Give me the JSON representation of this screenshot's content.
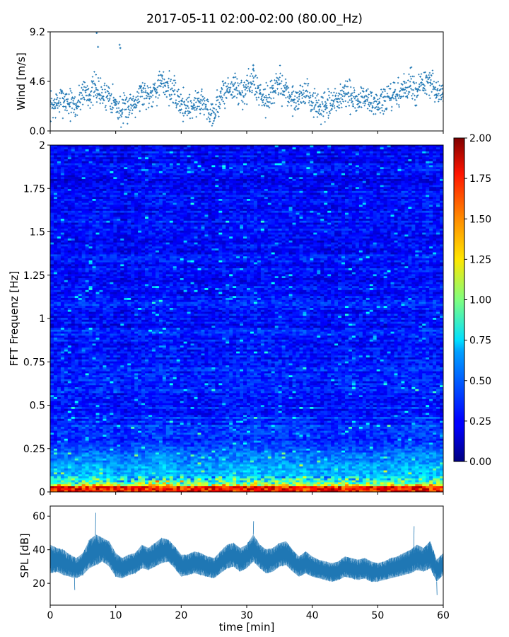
{
  "figure": {
    "title": "2017-05-11 02:00-02:00 (80.00_Hz)"
  },
  "chart_data": [
    {
      "type": "scatter",
      "panel": "wind",
      "ylabel": "Wind [m/s]",
      "xlabel": "",
      "xlim": [
        0,
        60
      ],
      "ylim": [
        0,
        9.2
      ],
      "yticks": [
        "0.0",
        "4.6",
        "9.2"
      ],
      "yticks_values": [
        0,
        4.6,
        9.2
      ],
      "marker_color": "#1f77b4",
      "series": [
        {
          "x": [
            0,
            1,
            2,
            3,
            4,
            5,
            6,
            7,
            8,
            9,
            10,
            11,
            12,
            13,
            14,
            15,
            16,
            17,
            18,
            19,
            20,
            21,
            22,
            23,
            24,
            25,
            26,
            27,
            28,
            29,
            30,
            31,
            32,
            33,
            34,
            35,
            36,
            37,
            38,
            39,
            40,
            41,
            42,
            43,
            44,
            45,
            46,
            47,
            48,
            49,
            50,
            51,
            52,
            53,
            54,
            55,
            56,
            57,
            58,
            59,
            60
          ],
          "values": [
            2.3,
            2.5,
            3.0,
            2.6,
            2.2,
            3.8,
            3.4,
            4.0,
            3.2,
            3.5,
            2.4,
            1.7,
            2.3,
            2.9,
            3.6,
            3.4,
            3.9,
            4.4,
            4.2,
            3.4,
            2.5,
            2.3,
            2.4,
            2.9,
            2.0,
            1.7,
            3.1,
            3.8,
            4.2,
            3.4,
            4.0,
            4.6,
            3.5,
            3.1,
            3.6,
            4.4,
            3.8,
            2.8,
            3.2,
            3.7,
            2.6,
            2.3,
            2.0,
            2.4,
            3.0,
            3.5,
            3.0,
            2.8,
            3.2,
            2.6,
            2.5,
            2.8,
            3.0,
            3.4,
            3.8,
            4.2,
            3.9,
            4.3,
            4.5,
            3.3,
            3.6
          ]
        }
      ],
      "outliers": [
        {
          "x": 7.1,
          "y": 9.1
        },
        {
          "x": 7.3,
          "y": 7.8
        },
        {
          "x": 10.6,
          "y": 8.0
        },
        {
          "x": 10.7,
          "y": 7.7
        },
        {
          "x": 31.0,
          "y": 6.1
        }
      ]
    },
    {
      "type": "heatmap",
      "panel": "spectrogram",
      "ylabel": "FFT Frequenz [Hz]",
      "xlabel": "",
      "xlim": [
        0,
        60
      ],
      "ylim": [
        0,
        2
      ],
      "yticks": [
        "0",
        "0.25",
        "0.5",
        "0.75",
        "1",
        "1.25",
        "1.5",
        "1.75",
        "2"
      ],
      "yticks_values": [
        0,
        0.25,
        0.5,
        0.75,
        1,
        1.25,
        1.5,
        1.75,
        2
      ],
      "colormap": "jet",
      "colorbar": {
        "vmin": 0,
        "vmax": 2,
        "ticks": [
          "0.00",
          "0.25",
          "0.50",
          "0.75",
          "1.00",
          "1.25",
          "1.50",
          "1.75",
          "2.00"
        ],
        "ticks_values": [
          0,
          0.25,
          0.5,
          0.75,
          1,
          1.25,
          1.5,
          1.75,
          2
        ]
      },
      "typical_level_by_frequency": {
        "frequency_hz": [
          0.0,
          0.02,
          0.05,
          0.1,
          0.2,
          0.3,
          0.5,
          1.0,
          2.0
        ],
        "level": [
          1.9,
          1.4,
          0.9,
          0.6,
          0.45,
          0.35,
          0.3,
          0.28,
          0.25
        ]
      }
    },
    {
      "type": "area",
      "panel": "spl",
      "ylabel": "SPL [dB]",
      "xlabel": "time [min]",
      "xlim": [
        0,
        60
      ],
      "ylim": [
        7,
        66
      ],
      "yticks": [
        "20",
        "40",
        "60"
      ],
      "yticks_values": [
        20,
        40,
        60
      ],
      "xticks": [
        "0",
        "10",
        "20",
        "30",
        "40",
        "50",
        "60"
      ],
      "xticks_values": [
        0,
        10,
        20,
        30,
        40,
        50,
        60
      ],
      "fill_color": "#1f77b4",
      "series": [
        {
          "x": [
            0,
            1,
            2,
            3,
            4,
            5,
            6,
            7,
            8,
            9,
            10,
            11,
            12,
            13,
            14,
            15,
            16,
            17,
            18,
            19,
            20,
            21,
            22,
            23,
            24,
            25,
            26,
            27,
            28,
            29,
            30,
            31,
            32,
            33,
            34,
            35,
            36,
            37,
            38,
            39,
            40,
            41,
            42,
            43,
            44,
            45,
            46,
            47,
            48,
            49,
            50,
            51,
            52,
            53,
            54,
            55,
            56,
            57,
            58,
            59,
            60
          ],
          "low": [
            26,
            27,
            25,
            24,
            23,
            25,
            29,
            31,
            33,
            30,
            24,
            23,
            25,
            26,
            29,
            28,
            30,
            32,
            33,
            29,
            24,
            25,
            26,
            25,
            24,
            23,
            26,
            29,
            30,
            27,
            29,
            33,
            29,
            26,
            27,
            30,
            31,
            27,
            24,
            26,
            24,
            23,
            22,
            21,
            22,
            24,
            23,
            22,
            23,
            21,
            21,
            22,
            23,
            24,
            25,
            26,
            28,
            27,
            29,
            21,
            25
          ],
          "high": [
            43,
            41,
            40,
            37,
            35,
            38,
            46,
            49,
            47,
            45,
            38,
            35,
            37,
            38,
            43,
            41,
            44,
            47,
            46,
            42,
            37,
            37,
            39,
            38,
            36,
            35,
            39,
            43,
            44,
            41,
            43,
            49,
            43,
            40,
            41,
            44,
            45,
            40,
            36,
            39,
            36,
            34,
            33,
            32,
            33,
            36,
            35,
            34,
            35,
            33,
            32,
            33,
            35,
            36,
            38,
            40,
            43,
            41,
            45,
            34,
            38
          ]
        }
      ],
      "spikes": [
        {
          "x": 6.9,
          "y": 62
        },
        {
          "x": 3.7,
          "y": 16
        },
        {
          "x": 31.0,
          "y": 57
        },
        {
          "x": 55.5,
          "y": 54
        },
        {
          "x": 59.0,
          "y": 13
        }
      ]
    }
  ]
}
